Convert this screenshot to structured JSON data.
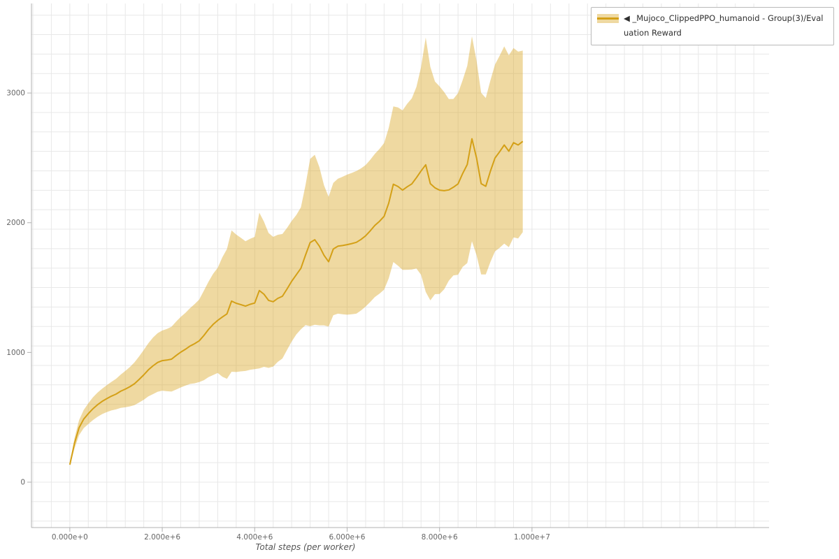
{
  "figure": {
    "legend": {
      "label": "◀ _Mujoco_ClippedPPO_humanoid - Group(3)/Evaluation Reward"
    },
    "colors": {
      "line": "#d4a017",
      "band": "#daa520",
      "band_opacity": 0.42,
      "grid": "#e8e8e8",
      "axis": "#b0b0b0",
      "tick_label": "#666666"
    }
  },
  "chart_data": {
    "type": "line",
    "title": "",
    "xlabel": "Total steps (per worker)",
    "ylabel": "",
    "legend_position": "top-right-outside",
    "grid": "on",
    "series_name": "_Mujoco_ClippedPPO_humanoid - Group(3)/Evaluation Reward",
    "band": "mean ± std",
    "x_start": 0,
    "x_step": 100000,
    "xlim": [
      -830000,
      15130000
    ],
    "ylim": [
      -350,
      3690
    ],
    "x_ticks": [
      {
        "value": 0,
        "label": "0.000e+0"
      },
      {
        "value": 2000000,
        "label": "2.000e+6"
      },
      {
        "value": 4000000,
        "label": "4.000e+6"
      },
      {
        "value": 6000000,
        "label": "6.000e+6"
      },
      {
        "value": 8000000,
        "label": "8.000e+6"
      },
      {
        "value": 10000000,
        "label": "1.000e+7"
      }
    ],
    "y_ticks": [
      {
        "value": 0,
        "label": "0"
      },
      {
        "value": 1000,
        "label": "1000"
      },
      {
        "value": 2000,
        "label": "2000"
      },
      {
        "value": 3000,
        "label": "3000"
      }
    ],
    "mean": [
      135,
      298,
      420,
      486,
      528,
      566,
      597,
      623,
      644,
      663,
      679,
      701,
      717,
      736,
      759,
      792,
      827,
      866,
      897,
      923,
      937,
      941,
      948,
      976,
      1002,
      1024,
      1049,
      1067,
      1090,
      1131,
      1177,
      1216,
      1247,
      1273,
      1297,
      1396,
      1379,
      1369,
      1357,
      1371,
      1381,
      1477,
      1449,
      1401,
      1391,
      1417,
      1433,
      1489,
      1549,
      1599,
      1649,
      1751,
      1847,
      1869,
      1819,
      1749,
      1699,
      1797,
      1819,
      1824,
      1831,
      1839,
      1849,
      1871,
      1899,
      1937,
      1979,
      2011,
      2049,
      2151,
      2297,
      2279,
      2251,
      2277,
      2299,
      2347,
      2399,
      2447,
      2301,
      2269,
      2251,
      2247,
      2253,
      2274,
      2299,
      2379,
      2449,
      2647,
      2499,
      2301,
      2281,
      2397,
      2499,
      2547,
      2599,
      2551,
      2617,
      2599,
      2627
    ],
    "std": [
      10,
      40,
      58,
      70,
      80,
      88,
      93,
      98,
      104,
      110,
      118,
      128,
      140,
      152,
      165,
      178,
      192,
      205,
      218,
      226,
      232,
      240,
      250,
      262,
      272,
      280,
      292,
      305,
      318,
      345,
      368,
      390,
      405,
      460,
      500,
      545,
      530,
      515,
      500,
      505,
      510,
      600,
      560,
      520,
      500,
      490,
      480,
      470,
      465,
      460,
      470,
      540,
      645,
      655,
      610,
      540,
      500,
      510,
      520,
      530,
      540,
      545,
      550,
      548,
      545,
      548,
      552,
      558,
      565,
      580,
      600,
      610,
      615,
      640,
      660,
      700,
      800,
      980,
      900,
      820,
      800,
      760,
      700,
      680,
      700,
      720,
      760,
      790,
      750,
      700,
      680,
      700,
      720,
      740,
      760,
      740,
      730,
      720,
      700
    ]
  }
}
